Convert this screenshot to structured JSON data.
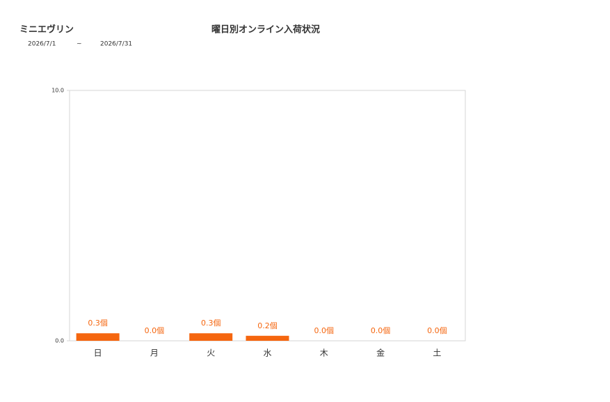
{
  "chart_data": {
    "type": "bar",
    "title": "曜日別オンライン入荷状況",
    "subtitle": "ミニエヴリン",
    "date_from": "2026/7/1",
    "date_separator": "~",
    "date_to": "2026/7/31",
    "categories": [
      "日",
      "月",
      "火",
      "水",
      "木",
      "金",
      "土"
    ],
    "values": [
      0.3,
      0.0,
      0.3,
      0.2,
      0.0,
      0.0,
      0.0
    ],
    "value_labels": [
      "0.3個",
      "0.0個",
      "0.3個",
      "0.2個",
      "0.0個",
      "0.0個",
      "0.0個"
    ],
    "color": "#f5660f",
    "ylim": [
      0,
      10
    ],
    "yticks": [
      {
        "value": 0,
        "label": "0.0"
      },
      {
        "value": 10,
        "label": "10.0"
      }
    ]
  }
}
